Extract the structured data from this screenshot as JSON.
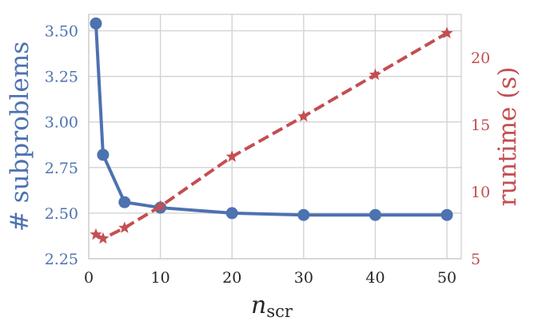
{
  "chart_data": {
    "type": "line",
    "x": [
      1,
      2,
      5,
      10,
      20,
      30,
      40,
      50
    ],
    "xlabel": {
      "main": "n",
      "sub": "scr"
    },
    "xlim": [
      0,
      52
    ],
    "xticks": [
      0,
      10,
      20,
      30,
      40,
      50
    ],
    "x_tick_labels": [
      "0",
      "10",
      "20",
      "30",
      "40",
      "50"
    ],
    "grid": true,
    "axes": {
      "left": {
        "label": "# subproblems",
        "color": "#4c72b0",
        "ylim": [
          2.25,
          3.59
        ],
        "ticks": [
          2.25,
          2.5,
          2.75,
          3.0,
          3.25,
          3.5
        ],
        "tick_labels": [
          "2.25",
          "2.50",
          "2.75",
          "3.00",
          "3.25",
          "3.50"
        ]
      },
      "right": {
        "label": "runtime (s)",
        "color": "#c44e52",
        "ylim": [
          5,
          23.2
        ],
        "ticks": [
          5,
          10,
          15,
          20
        ],
        "tick_labels": [
          "5",
          "10",
          "15",
          "20"
        ]
      }
    },
    "series": [
      {
        "axis": "left",
        "color": "#4c72b0",
        "line_style": "solid",
        "marker": "circle",
        "values": [
          3.54,
          2.82,
          2.56,
          2.53,
          2.5,
          2.49,
          2.49,
          2.49
        ]
      },
      {
        "axis": "right",
        "color": "#c44e52",
        "line_style": "dashed",
        "marker": "star",
        "values": [
          6.8,
          6.5,
          7.3,
          8.9,
          12.6,
          15.6,
          18.7,
          21.8
        ]
      }
    ]
  }
}
